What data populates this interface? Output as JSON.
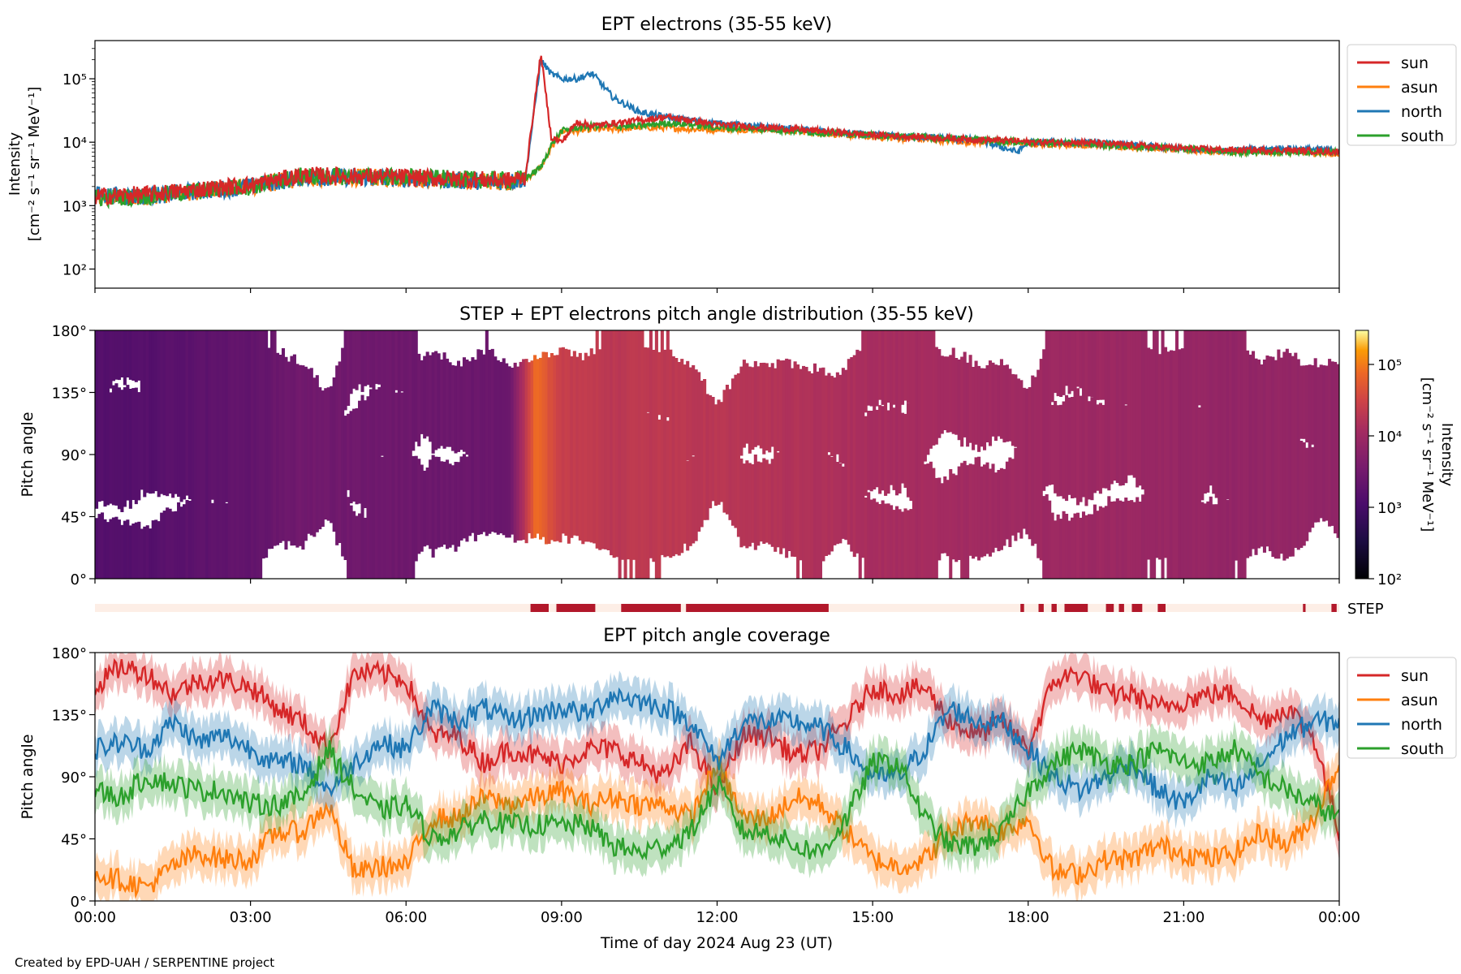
{
  "credit": "Created by EPD-UAH / SERPENTINE project",
  "x_axis": {
    "label": "Time of day 2024 Aug 23 (UT)",
    "ticks": [
      "00:00",
      "03:00",
      "06:00",
      "09:00",
      "12:00",
      "15:00",
      "18:00",
      "21:00",
      "00:00"
    ],
    "range_hours": [
      0,
      24
    ]
  },
  "colors": {
    "sun": "#d62728",
    "asun": "#ff7f0e",
    "north": "#1f77b4",
    "south": "#2ca02c",
    "step_bar": "#b2182b",
    "step_bg": "#fdeee6"
  },
  "chart_data": [
    {
      "type": "line",
      "title": "EPT electrons (35-55 keV)",
      "xlabel": "",
      "ylabel": "Intensity",
      "ylabel_units": "[cm⁻² s⁻¹ sr⁻¹ MeV⁻¹]",
      "yscale": "log",
      "ylim": [
        50,
        400000
      ],
      "yticks": [
        {
          "value": 100,
          "label": "10²"
        },
        {
          "value": 1000,
          "label": "10³"
        },
        {
          "value": 10000,
          "label": "10⁴"
        },
        {
          "value": 100000,
          "label": "10⁵"
        }
      ],
      "legend_position": "outside-top-right",
      "legend": [
        "sun",
        "asun",
        "north",
        "south"
      ],
      "x": [
        0,
        1,
        2,
        3,
        4,
        5,
        6,
        7,
        8,
        8.3,
        8.6,
        8.8,
        9.0,
        9.3,
        9.6,
        10.0,
        10.5,
        11.0,
        11.5,
        12.0,
        13,
        14,
        15,
        16,
        17,
        17.8,
        18,
        19,
        20,
        21,
        22,
        23,
        24
      ],
      "series": [
        {
          "name": "sun",
          "values": [
            1400,
            1500,
            1800,
            2100,
            3000,
            2900,
            2800,
            2600,
            2500,
            2800,
            250000,
            12000,
            10000,
            21000,
            18000,
            20000,
            22000,
            25000,
            22000,
            19000,
            17000,
            15000,
            13000,
            12000,
            11000,
            10500,
            10000,
            10000,
            9000,
            8000,
            7500,
            7500,
            7000
          ]
        },
        {
          "name": "asun",
          "values": [
            1300,
            1400,
            1700,
            2000,
            2700,
            2800,
            2700,
            2500,
            2400,
            2600,
            4000,
            8000,
            15000,
            15000,
            16000,
            16000,
            17000,
            17000,
            16000,
            16000,
            16000,
            14000,
            12000,
            11000,
            10000,
            10000,
            9500,
            9000,
            8500,
            7500,
            7000,
            7000,
            6500
          ]
        },
        {
          "name": "north",
          "values": [
            1500,
            1400,
            1700,
            2000,
            2800,
            2800,
            2700,
            2500,
            2400,
            2600,
            200000,
            120000,
            100000,
            100000,
            120000,
            50000,
            30000,
            25000,
            22000,
            20000,
            17000,
            15000,
            13000,
            12000,
            11000,
            7000,
            10000,
            10000,
            9000,
            8000,
            7500,
            8000,
            7500
          ]
        },
        {
          "name": "south",
          "values": [
            1300,
            1400,
            1700,
            2000,
            2900,
            2900,
            2800,
            2600,
            2500,
            2700,
            4000,
            9000,
            15000,
            17000,
            18000,
            18000,
            18000,
            20000,
            19000,
            17000,
            16000,
            14000,
            13000,
            12000,
            11000,
            10000,
            10000,
            9500,
            8500,
            8000,
            7000,
            7000,
            7000
          ]
        }
      ]
    },
    {
      "type": "heatmap",
      "title": "STEP + EPT electrons pitch angle distribution (35-55 keV)",
      "xlabel": "",
      "ylabel": "Pitch angle",
      "ylim": [
        0,
        180
      ],
      "yticks": [
        "0°",
        "45°",
        "90°",
        "135°",
        "180°"
      ],
      "colorbar": {
        "label": "Intensity",
        "units": "[cm⁻² s⁻¹ sr⁻¹ MeV⁻¹]",
        "scale": "log",
        "range": [
          100,
          300000
        ],
        "ticks": [
          {
            "value": 100,
            "label": "10²"
          },
          {
            "value": 1000,
            "label": "10³"
          },
          {
            "value": 10000,
            "label": "10⁴"
          },
          {
            "value": 100000,
            "label": "10⁵"
          }
        ]
      },
      "hours": [
        0,
        1,
        2,
        3,
        4,
        5,
        6,
        7,
        8,
        8.5,
        9,
        10,
        11,
        12,
        13,
        14,
        15,
        16,
        17,
        18,
        19,
        20,
        21,
        22,
        23,
        24
      ],
      "intensity": [
        1400,
        1500,
        1800,
        2100,
        3000,
        2900,
        2800,
        2600,
        2500,
        80000,
        25000,
        20000,
        21000,
        19000,
        17000,
        15000,
        13000,
        12000,
        11000,
        10000,
        10000,
        9000,
        8000,
        7500,
        7500,
        7000
      ]
    },
    {
      "type": "table",
      "title": "",
      "label": "STEP",
      "step_coverage_hours": [
        [
          8.4,
          8.75
        ],
        [
          8.9,
          9.65
        ],
        [
          10.15,
          11.3
        ],
        [
          11.4,
          14.15
        ],
        [
          17.85,
          17.92
        ],
        [
          18.2,
          18.3
        ],
        [
          18.45,
          18.55
        ],
        [
          18.7,
          19.15
        ],
        [
          19.5,
          19.65
        ],
        [
          19.75,
          19.85
        ],
        [
          20.0,
          20.2
        ],
        [
          20.5,
          20.65
        ],
        [
          23.3,
          23.35
        ],
        [
          23.85,
          23.95
        ]
      ]
    },
    {
      "type": "line",
      "title": "EPT pitch angle coverage",
      "xlabel": "Time of day 2024 Aug 23 (UT)",
      "ylabel": "Pitch angle",
      "ylim": [
        0,
        180
      ],
      "yticks": [
        "0°",
        "45°",
        "90°",
        "135°",
        "180°"
      ],
      "legend_position": "outside-top-right",
      "legend": [
        "sun",
        "asun",
        "north",
        "south"
      ],
      "x": [
        0,
        0.5,
        1,
        1.5,
        2,
        2.5,
        3,
        3.5,
        4,
        4.5,
        5,
        5.5,
        6,
        6.5,
        7,
        7.5,
        8,
        8.5,
        9,
        9.5,
        10,
        10.5,
        11,
        11.5,
        12,
        12.5,
        13,
        13.5,
        14,
        14.5,
        15,
        15.5,
        16,
        16.5,
        17,
        17.5,
        18,
        18.5,
        19,
        19.5,
        20,
        20.5,
        21,
        21.5,
        22,
        22.5,
        23,
        23.5,
        24
      ],
      "series": [
        {
          "name": "sun",
          "values": [
            155,
            170,
            165,
            150,
            160,
            160,
            155,
            140,
            130,
            110,
            165,
            165,
            160,
            120,
            120,
            100,
            110,
            105,
            100,
            110,
            110,
            100,
            90,
            115,
            80,
            120,
            120,
            105,
            110,
            130,
            155,
            150,
            155,
            130,
            120,
            130,
            110,
            160,
            165,
            150,
            150,
            140,
            145,
            150,
            150,
            130,
            140,
            120,
            50
          ]
        },
        {
          "name": "asun",
          "values": [
            20,
            15,
            10,
            25,
            35,
            30,
            30,
            50,
            50,
            70,
            20,
            25,
            25,
            60,
            60,
            75,
            70,
            75,
            80,
            70,
            75,
            70,
            70,
            60,
            100,
            60,
            60,
            75,
            70,
            50,
            30,
            25,
            30,
            50,
            60,
            50,
            60,
            20,
            20,
            30,
            30,
            40,
            35,
            30,
            35,
            50,
            40,
            60,
            100
          ]
        },
        {
          "name": "north",
          "values": [
            110,
            115,
            110,
            130,
            115,
            120,
            110,
            100,
            100,
            80,
            100,
            115,
            110,
            140,
            130,
            140,
            130,
            135,
            140,
            135,
            150,
            145,
            140,
            130,
            100,
            130,
            130,
            130,
            125,
            110,
            90,
            90,
            110,
            140,
            130,
            130,
            110,
            90,
            80,
            90,
            100,
            80,
            70,
            90,
            80,
            100,
            120,
            130,
            130
          ]
        },
        {
          "name": "south",
          "values": [
            80,
            75,
            90,
            85,
            80,
            80,
            70,
            70,
            75,
            110,
            80,
            65,
            70,
            45,
            50,
            60,
            55,
            55,
            55,
            55,
            40,
            35,
            40,
            50,
            85,
            50,
            50,
            40,
            35,
            60,
            100,
            100,
            60,
            40,
            40,
            50,
            80,
            100,
            110,
            100,
            100,
            110,
            100,
            100,
            110,
            90,
            80,
            70,
            60
          ]
        }
      ]
    }
  ]
}
